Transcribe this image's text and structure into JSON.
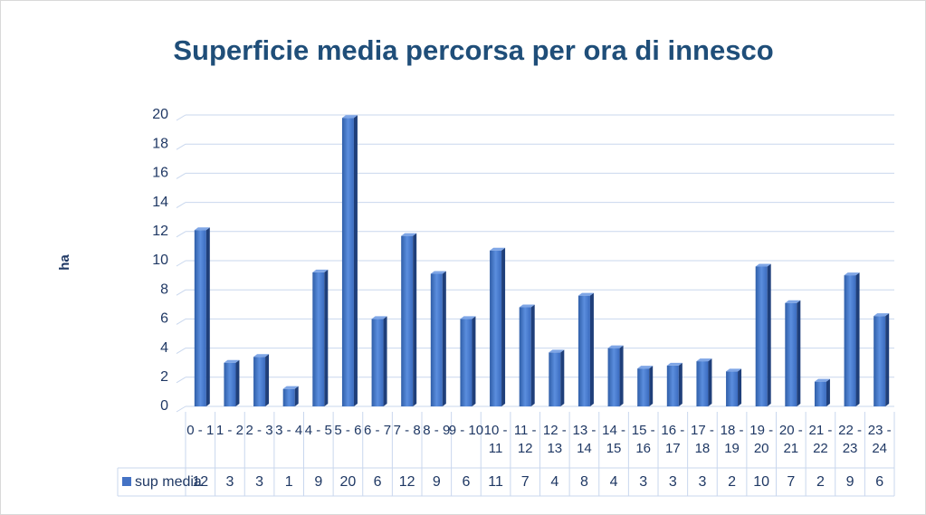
{
  "chart_data": {
    "type": "bar",
    "title": "Superficie media percorsa per ora di innesco",
    "y_label": "ha",
    "categories": [
      "0 - 1",
      "1 - 2",
      "2 - 3",
      "3 - 4",
      "4 - 5",
      "5 - 6",
      "6 - 7",
      "7 - 8",
      "8 - 9",
      "9 - 10",
      "10 - 11",
      "11 - 12",
      "12 - 13",
      "13 - 14",
      "14 - 15",
      "15 - 16",
      "16 - 17",
      "17 - 18",
      "18 - 19",
      "19 - 20",
      "20 - 21",
      "21 - 22",
      "22 - 23",
      "23 - 24"
    ],
    "series": [
      {
        "name": "sup media",
        "color": "#4472c4",
        "values": [
          12.1,
          3.0,
          3.4,
          1.2,
          9.2,
          19.8,
          6.0,
          11.7,
          9.1,
          6.0,
          10.7,
          6.8,
          3.7,
          7.6,
          4.0,
          2.6,
          2.8,
          3.1,
          2.4,
          9.6,
          7.1,
          1.7,
          9.0,
          6.2
        ],
        "value_labels": [
          "12",
          "3",
          "3",
          "1",
          "9",
          "20",
          "6",
          "12",
          "9",
          "6",
          "11",
          "7",
          "4",
          "8",
          "4",
          "3",
          "3",
          "3",
          "2",
          "10",
          "7",
          "2",
          "9",
          "6"
        ]
      }
    ],
    "ylim": [
      0,
      20
    ],
    "yticks": [
      0,
      2,
      4,
      6,
      8,
      10,
      12,
      14,
      16,
      18,
      20
    ],
    "grid": true
  }
}
